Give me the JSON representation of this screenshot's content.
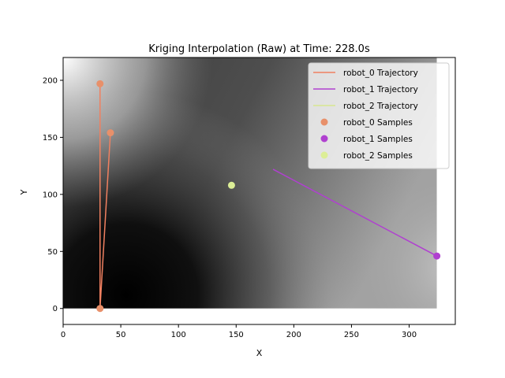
{
  "chart_data": {
    "type": "scatter",
    "title": "Kriging Interpolation (Raw) at Time: 228.0s",
    "xlabel": "X",
    "ylabel": "Y",
    "xlim": [
      0,
      340
    ],
    "ylim": [
      -14,
      220
    ],
    "xticks": [
      0,
      50,
      100,
      150,
      200,
      250,
      300
    ],
    "yticks": [
      0,
      50,
      100,
      150,
      200
    ],
    "background": {
      "kind": "grayscale-kriging-field",
      "extent_x": [
        0,
        324
      ],
      "extent_y": [
        0,
        220
      ],
      "dark_center": [
        55,
        25
      ],
      "light_corners": [
        "top-left",
        "right"
      ]
    },
    "legend_position": "top-right",
    "series": [
      {
        "name": "robot_0 Trajectory",
        "kind": "line",
        "color": "#f08060",
        "points": [
          [
            41,
            154
          ],
          [
            32,
            0
          ],
          [
            32,
            197
          ]
        ]
      },
      {
        "name": "robot_1 Trajectory",
        "kind": "line",
        "color": "#b040d0",
        "points": [
          [
            182,
            122
          ],
          [
            324,
            46
          ]
        ]
      },
      {
        "name": "robot_2 Trajectory",
        "kind": "line",
        "color": "#d8e890",
        "points": []
      },
      {
        "name": "robot_0 Samples",
        "kind": "scatter",
        "color": "#e8906a",
        "points": [
          [
            32,
            197
          ],
          [
            41,
            154
          ],
          [
            32,
            0
          ]
        ]
      },
      {
        "name": "robot_1 Samples",
        "kind": "scatter",
        "color": "#b040d0",
        "points": [
          [
            324,
            46
          ]
        ]
      },
      {
        "name": "robot_2 Samples",
        "kind": "scatter",
        "color": "#dcee96",
        "points": [
          [
            146,
            108
          ]
        ]
      }
    ]
  }
}
